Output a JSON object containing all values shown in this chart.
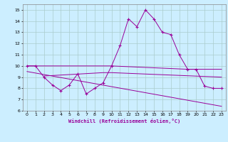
{
  "xlabel": "Windchill (Refroidissement éolien,°C)",
  "background_color": "#cceeff",
  "grid_color": "#aacccc",
  "line_color": "#990099",
  "xlim": [
    -0.5,
    23.5
  ],
  "ylim": [
    6,
    15.5
  ],
  "yticks": [
    6,
    7,
    8,
    9,
    10,
    11,
    12,
    13,
    14,
    15
  ],
  "xticks": [
    0,
    1,
    2,
    3,
    4,
    5,
    6,
    7,
    8,
    9,
    10,
    11,
    12,
    13,
    14,
    15,
    16,
    17,
    18,
    19,
    20,
    21,
    22,
    23
  ],
  "line1_x": [
    0,
    1,
    2,
    3,
    4,
    5,
    6,
    7,
    8,
    9,
    10,
    11,
    12,
    13,
    14,
    15,
    16,
    17,
    18,
    19,
    20,
    21,
    22,
    23
  ],
  "line1_y": [
    10,
    10,
    9,
    8.3,
    7.8,
    8.3,
    9.3,
    7.5,
    8.0,
    8.5,
    10,
    11.8,
    14.2,
    13.5,
    15,
    14.2,
    13,
    12.8,
    11,
    9.7,
    9.7,
    8.2,
    8.0,
    8.0
  ],
  "line2_x": [
    0,
    10,
    19,
    23
  ],
  "line2_y": [
    10,
    10,
    9.7,
    9.7
  ],
  "line3_x": [
    0,
    23
  ],
  "line3_y": [
    9.5,
    6.4
  ],
  "line4_x": [
    2,
    9,
    10,
    23
  ],
  "line4_y": [
    9.1,
    9.4,
    9.4,
    9.0
  ]
}
